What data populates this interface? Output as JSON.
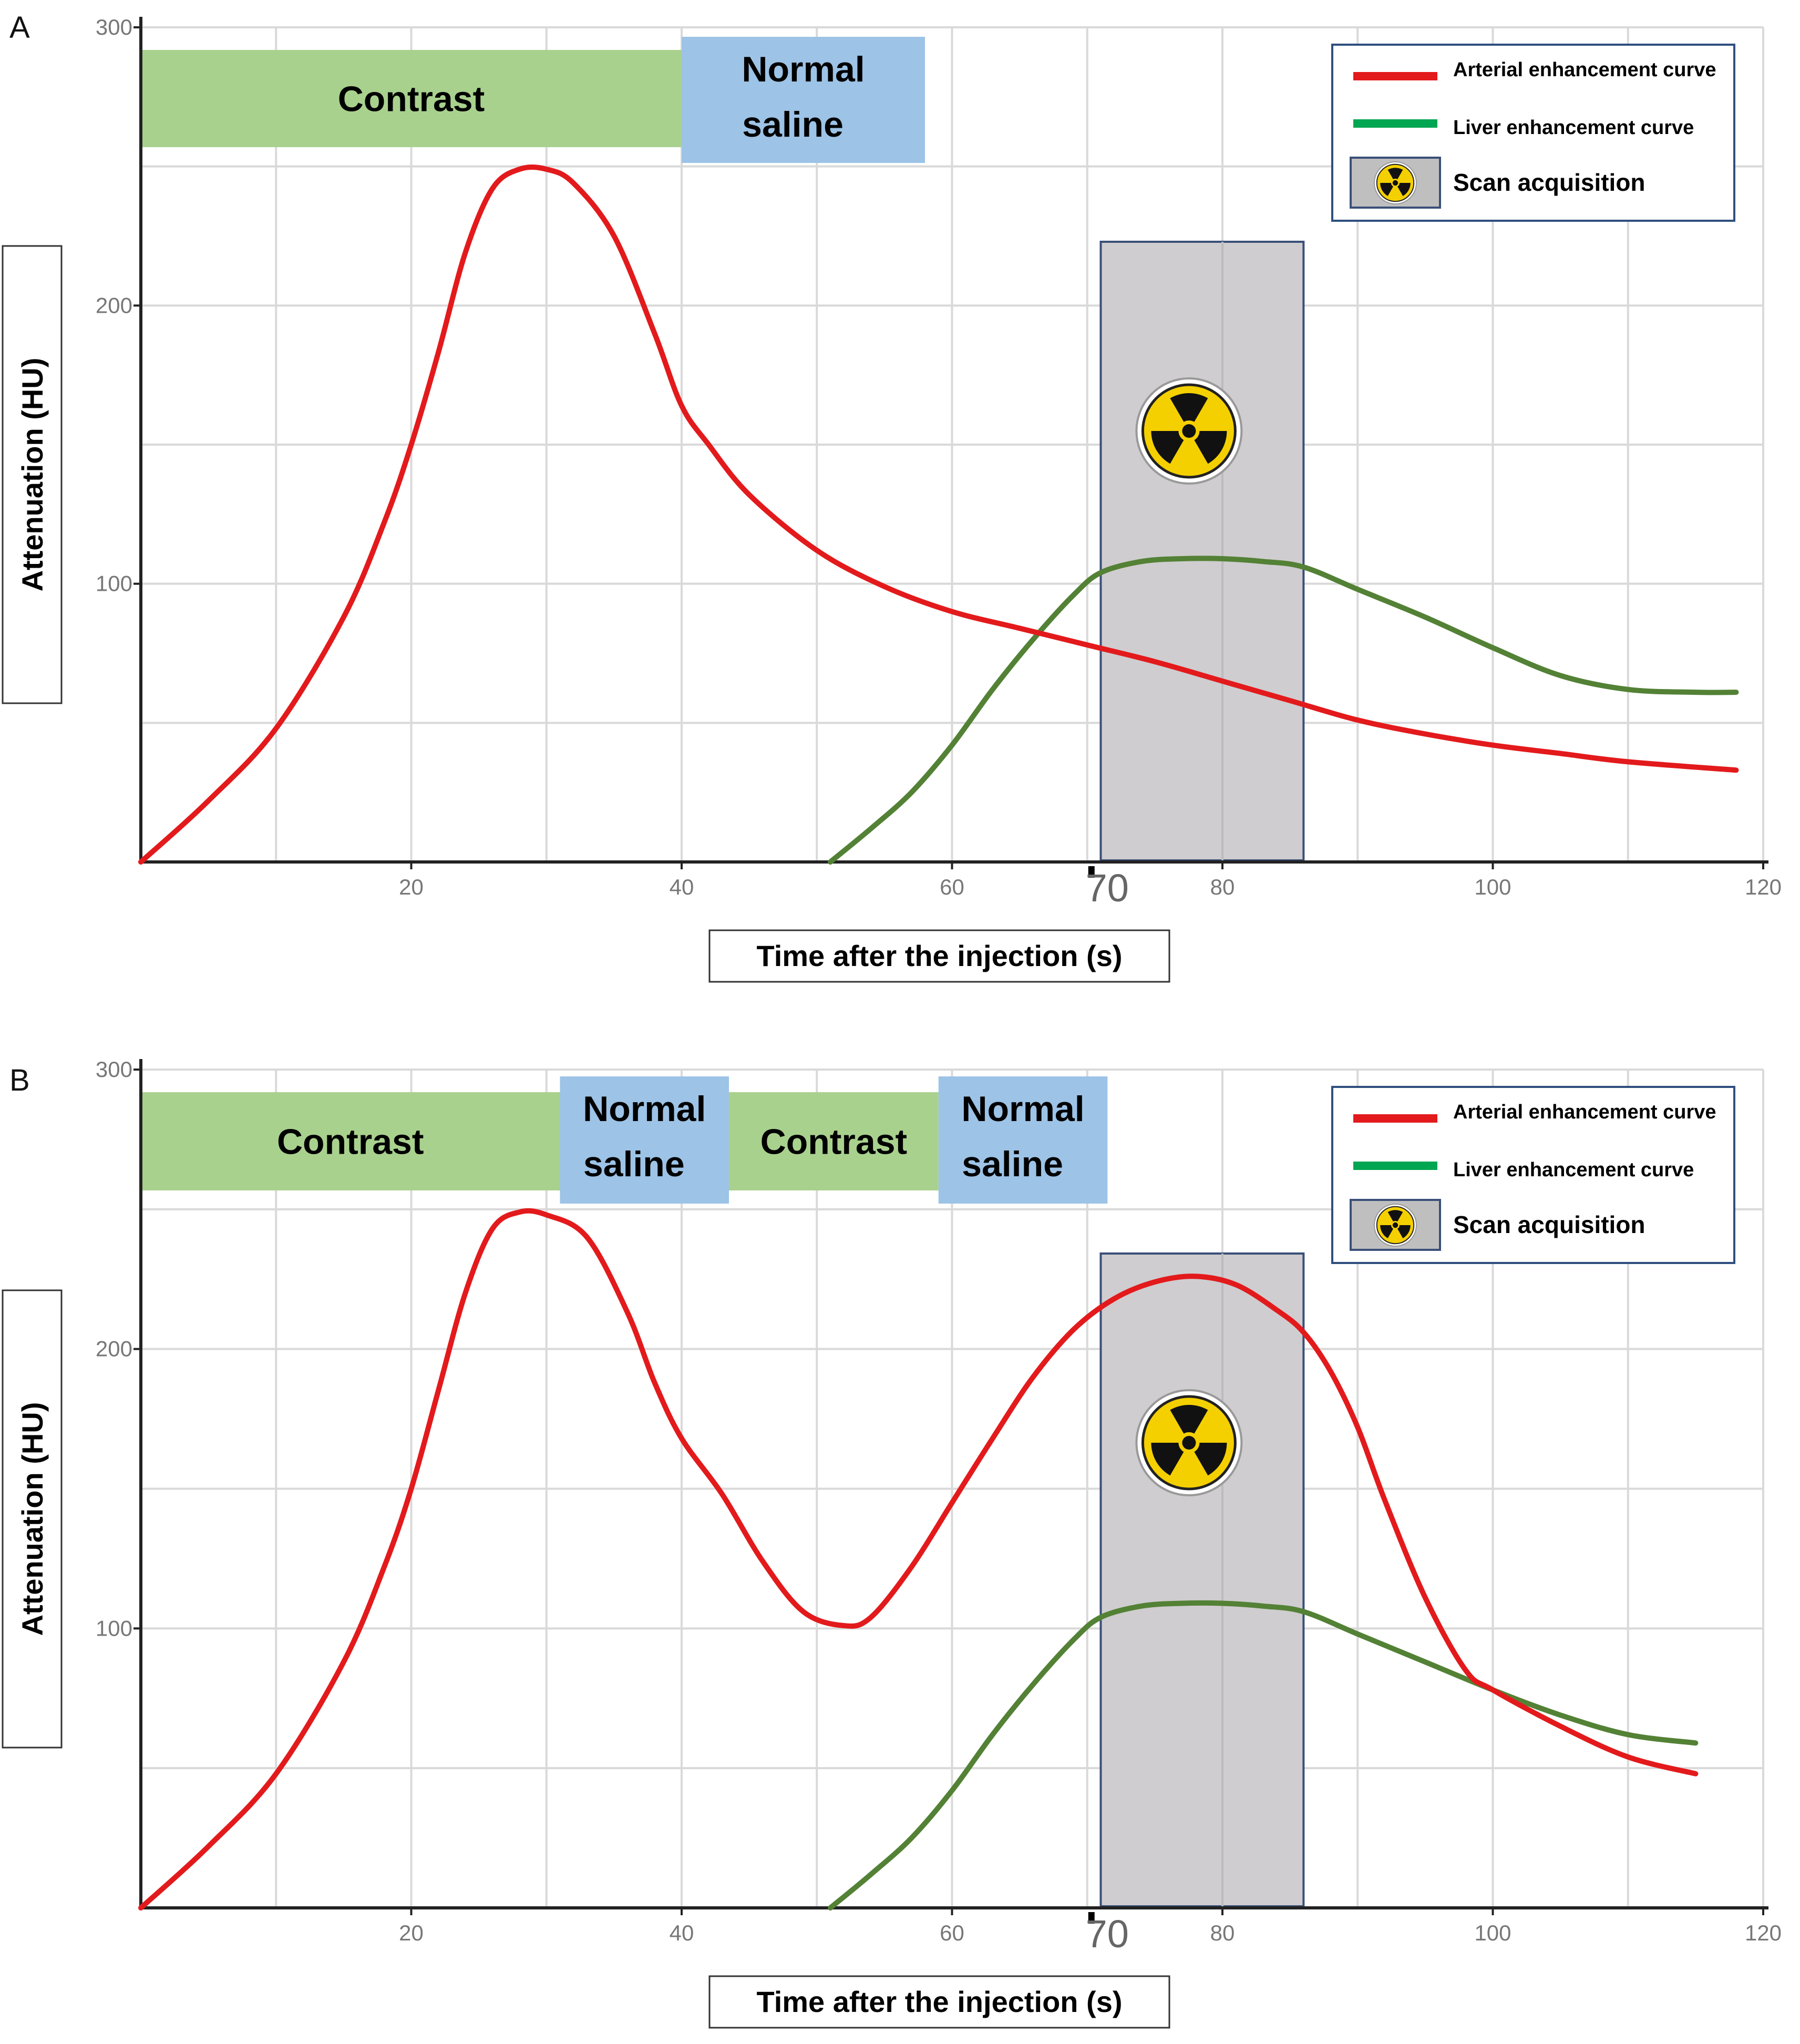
{
  "chart_data": [
    {
      "panel": "A",
      "type": "line",
      "xlabel": "Time after the injection (s)",
      "ylabel": "Attenuation (HU)",
      "xlim": [
        0,
        120
      ],
      "ylim": [
        0,
        300
      ],
      "xticks": [
        20,
        40,
        60,
        80,
        100,
        120
      ],
      "yticks": [
        100,
        200,
        300
      ],
      "extra_tick_label": {
        "value": 70,
        "text": "70"
      },
      "grid": true,
      "phases": [
        {
          "label": "Contrast",
          "lines": [
            "Contrast"
          ],
          "start": 0,
          "end": 40,
          "color": "#a9d18e"
        },
        {
          "label": "Normal saline",
          "lines": [
            "Normal",
            "saline"
          ],
          "start": 40,
          "end": 58,
          "color": "#9dc3e6"
        }
      ],
      "scan_window": {
        "start": 71,
        "end": 86,
        "label": "Scan acquisition"
      },
      "legend": {
        "position": "top-right",
        "entries": [
          {
            "label": "Arterial enhancement curve",
            "color": "#e31a1c",
            "kind": "line"
          },
          {
            "label": "Liver enhancement curve",
            "color": "#00a651",
            "kind": "line"
          },
          {
            "label": "Scan acquisition",
            "kind": "scan-icon"
          }
        ]
      },
      "series": [
        {
          "name": "Arterial enhancement curve",
          "color": "#e31a1c",
          "x": [
            0,
            5,
            10,
            15,
            18,
            20,
            22,
            24,
            26,
            28,
            30,
            32,
            35,
            38,
            40,
            42,
            45,
            50,
            55,
            60,
            65,
            70,
            75,
            80,
            85,
            90,
            95,
            100,
            105,
            110,
            118
          ],
          "y": [
            0,
            22,
            48,
            88,
            122,
            150,
            183,
            219,
            242,
            249,
            249,
            244,
            225,
            190,
            164,
            150,
            132,
            112,
            99,
            90,
            84,
            78,
            72,
            65,
            58,
            51,
            46,
            42,
            39,
            36,
            33
          ]
        },
        {
          "name": "Liver enhancement curve",
          "color": "#538135",
          "x": [
            51,
            54,
            57,
            60,
            63,
            66,
            69,
            71,
            74,
            77,
            80,
            83,
            86,
            90,
            95,
            100,
            105,
            110,
            115,
            118
          ],
          "y": [
            0,
            12,
            25,
            42,
            62,
            80,
            96,
            104,
            108,
            109,
            109,
            108,
            106,
            98,
            88,
            77,
            67,
            62,
            61,
            61
          ]
        }
      ]
    },
    {
      "panel": "B",
      "type": "line",
      "xlabel": "Time after the injection (s)",
      "ylabel": "Attenuation (HU)",
      "xlim": [
        0,
        120
      ],
      "ylim": [
        0,
        300
      ],
      "xticks": [
        20,
        40,
        60,
        80,
        100,
        120
      ],
      "yticks": [
        100,
        200,
        300
      ],
      "extra_tick_label": {
        "value": 70,
        "text": "70"
      },
      "grid": true,
      "phases": [
        {
          "label": "Contrast",
          "lines": [
            "Contrast"
          ],
          "start": 0,
          "end": 31,
          "color": "#a9d18e"
        },
        {
          "label": "Normal saline",
          "lines": [
            "Normal",
            "saline"
          ],
          "start": 31,
          "end": 43.5,
          "color": "#9dc3e6"
        },
        {
          "label": "Contrast",
          "lines": [
            "Contrast"
          ],
          "start": 43.5,
          "end": 59,
          "color": "#a9d18e"
        },
        {
          "label": "Normal saline",
          "lines": [
            "Normal",
            "saline"
          ],
          "start": 59,
          "end": 71.5,
          "color": "#9dc3e6"
        }
      ],
      "scan_window": {
        "start": 71,
        "end": 86,
        "label": "Scan acquisition"
      },
      "legend": {
        "position": "top-right",
        "entries": [
          {
            "label": "Arterial enhancement curve",
            "color": "#e31a1c",
            "kind": "line"
          },
          {
            "label": "Liver enhancement curve",
            "color": "#00a651",
            "kind": "line"
          },
          {
            "label": "Scan acquisition",
            "kind": "scan-icon"
          }
        ]
      },
      "series": [
        {
          "name": "Arterial enhancement curve",
          "color": "#e31a1c",
          "x": [
            0,
            5,
            10,
            15,
            18,
            20,
            22,
            24,
            26,
            28,
            30,
            33,
            36,
            38,
            40,
            43,
            46,
            49,
            52,
            54,
            57,
            60,
            63,
            66,
            69,
            72,
            75,
            78,
            81,
            84,
            86,
            88,
            90,
            92,
            95,
            98,
            100,
            105,
            110,
            115
          ],
          "y": [
            0,
            22,
            48,
            88,
            122,
            150,
            185,
            220,
            243,
            249,
            248,
            240,
            213,
            188,
            168,
            148,
            124,
            106,
            101,
            104,
            122,
            145,
            168,
            190,
            207,
            218,
            224,
            226,
            223,
            214,
            206,
            192,
            172,
            146,
            111,
            85,
            78,
            65,
            54,
            48
          ]
        },
        {
          "name": "Liver enhancement curve",
          "color": "#538135",
          "x": [
            51,
            54,
            57,
            60,
            63,
            66,
            69,
            71,
            74,
            77,
            80,
            83,
            86,
            90,
            95,
            100,
            105,
            110,
            115
          ],
          "y": [
            0,
            12,
            25,
            42,
            62,
            80,
            96,
            104,
            108,
            109,
            109,
            108,
            106,
            98,
            88,
            78,
            69,
            62,
            59
          ]
        }
      ]
    }
  ]
}
